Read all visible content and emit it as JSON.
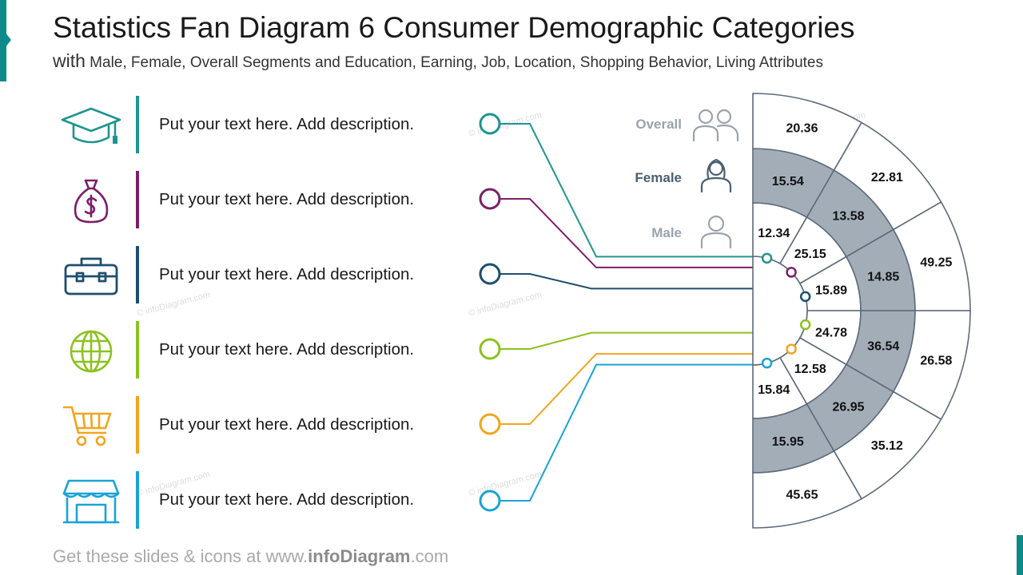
{
  "title": "Statistics Fan Diagram 6 Consumer Demographic Categories",
  "subtitle_lead": "with",
  "subtitle_rest": " Male, Female, Overall Segments and Education, Earning, Job, Location, Shopping Behavior, Living Attributes",
  "rows": [
    {
      "text": "Put your text here. Add description.",
      "icon": "graduation-cap-icon",
      "color": "#1f9490"
    },
    {
      "text": "Put your text here. Add description.",
      "icon": "money-bag-icon",
      "color": "#7b1f6a"
    },
    {
      "text": "Put your text here. Add description.",
      "icon": "toolbox-icon",
      "color": "#1f4e6e"
    },
    {
      "text": "Put your text here. Add description.",
      "icon": "globe-icon",
      "color": "#8cc21f"
    },
    {
      "text": "Put your text here. Add description.",
      "icon": "shopping-cart-icon",
      "color": "#f2a51f"
    },
    {
      "text": "Put your text here. Add description.",
      "icon": "store-icon",
      "color": "#1aa3d6"
    }
  ],
  "legend": {
    "overall": {
      "label": "Overall",
      "color": "#9aa3ad"
    },
    "female": {
      "label": "Female",
      "color": "#4b5f73"
    },
    "male": {
      "label": "Male",
      "color": "#9aa3ad"
    }
  },
  "chart_data": {
    "type": "fan",
    "categories": [
      "Education",
      "Earning",
      "Job",
      "Location",
      "Shopping Behavior",
      "Living Attributes"
    ],
    "series": [
      {
        "name": "Male",
        "values": [
          12.34,
          25.15,
          15.89,
          24.78,
          12.58,
          15.84
        ]
      },
      {
        "name": "Female",
        "values": [
          15.54,
          13.58,
          14.85,
          36.54,
          26.95,
          15.95
        ]
      },
      {
        "name": "Overall",
        "values": [
          20.36,
          22.81,
          49.25,
          26.58,
          35.12,
          45.65
        ]
      }
    ],
    "female_ring_fill": "#a3adb8"
  },
  "watermark": "© infoDiagram.com",
  "footer": {
    "prefix": "Get these slides & icons at www.",
    "brand": "infoDiagram",
    "suffix": ".com"
  }
}
